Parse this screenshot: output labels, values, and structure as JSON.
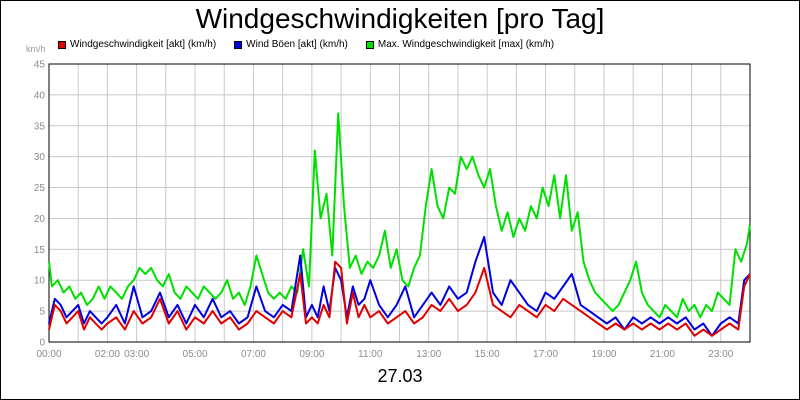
{
  "chart_data": {
    "type": "line",
    "title": "Windgeschwindigkeiten [pro Tag]",
    "ylabel": "km/h",
    "date": "27.03",
    "ylim": [
      0,
      45
    ],
    "y_ticks": [
      "0",
      "5",
      "10",
      "15",
      "20",
      "25",
      "30",
      "35",
      "40",
      "45"
    ],
    "x_ticks": [
      "00:00",
      "02:00",
      "03:00",
      "05:00",
      "07:00",
      "09:00",
      "11:00",
      "13:00",
      "15:00",
      "17:00",
      "19:00",
      "21:00",
      "23:00"
    ],
    "x_tick_hours": [
      0,
      2,
      3,
      5,
      7,
      9,
      11,
      13,
      15,
      17,
      19,
      21,
      23
    ],
    "xlim": [
      0,
      24
    ],
    "grid": true,
    "legend_position": "top",
    "series": [
      {
        "name": "Windgeschwindigkeit [akt] (km/h)",
        "color": "#e00000",
        "points": [
          [
            0,
            2
          ],
          [
            0.2,
            6
          ],
          [
            0.4,
            5
          ],
          [
            0.6,
            3
          ],
          [
            0.8,
            4
          ],
          [
            1,
            5
          ],
          [
            1.2,
            2
          ],
          [
            1.4,
            4
          ],
          [
            1.6,
            3
          ],
          [
            1.8,
            2
          ],
          [
            2,
            3
          ],
          [
            2.3,
            4
          ],
          [
            2.6,
            2
          ],
          [
            2.9,
            5
          ],
          [
            3.2,
            3
          ],
          [
            3.5,
            4
          ],
          [
            3.8,
            7
          ],
          [
            4.1,
            3
          ],
          [
            4.4,
            5
          ],
          [
            4.7,
            2
          ],
          [
            5,
            4
          ],
          [
            5.3,
            3
          ],
          [
            5.6,
            5
          ],
          [
            5.9,
            3
          ],
          [
            6.2,
            4
          ],
          [
            6.5,
            2
          ],
          [
            6.8,
            3
          ],
          [
            7.1,
            5
          ],
          [
            7.4,
            4
          ],
          [
            7.7,
            3
          ],
          [
            8,
            5
          ],
          [
            8.3,
            4
          ],
          [
            8.6,
            11
          ],
          [
            8.8,
            3
          ],
          [
            9,
            4
          ],
          [
            9.2,
            3
          ],
          [
            9.4,
            6
          ],
          [
            9.6,
            4
          ],
          [
            9.8,
            13
          ],
          [
            10,
            12
          ],
          [
            10.2,
            3
          ],
          [
            10.4,
            8
          ],
          [
            10.6,
            4
          ],
          [
            10.8,
            6
          ],
          [
            11,
            4
          ],
          [
            11.3,
            5
          ],
          [
            11.6,
            3
          ],
          [
            11.9,
            4
          ],
          [
            12.2,
            5
          ],
          [
            12.5,
            3
          ],
          [
            12.8,
            4
          ],
          [
            13.1,
            6
          ],
          [
            13.4,
            5
          ],
          [
            13.7,
            7
          ],
          [
            14,
            5
          ],
          [
            14.3,
            6
          ],
          [
            14.6,
            8
          ],
          [
            14.9,
            12
          ],
          [
            15.2,
            6
          ],
          [
            15.5,
            5
          ],
          [
            15.8,
            4
          ],
          [
            16.1,
            6
          ],
          [
            16.4,
            5
          ],
          [
            16.7,
            4
          ],
          [
            17,
            6
          ],
          [
            17.3,
            5
          ],
          [
            17.6,
            7
          ],
          [
            17.9,
            6
          ],
          [
            18.2,
            5
          ],
          [
            18.5,
            4
          ],
          [
            18.8,
            3
          ],
          [
            19.1,
            2
          ],
          [
            19.4,
            3
          ],
          [
            19.7,
            2
          ],
          [
            20,
            3
          ],
          [
            20.3,
            2
          ],
          [
            20.6,
            3
          ],
          [
            20.9,
            2
          ],
          [
            21.2,
            3
          ],
          [
            21.5,
            2
          ],
          [
            21.8,
            3
          ],
          [
            22.1,
            1
          ],
          [
            22.4,
            2
          ],
          [
            22.7,
            1
          ],
          [
            23,
            2
          ],
          [
            23.3,
            3
          ],
          [
            23.6,
            2
          ],
          [
            23.8,
            9
          ],
          [
            24,
            11
          ]
        ]
      },
      {
        "name": "Wind Böen [akt] (km/h)",
        "color": "#0000e0",
        "points": [
          [
            0,
            3
          ],
          [
            0.2,
            7
          ],
          [
            0.4,
            6
          ],
          [
            0.6,
            4
          ],
          [
            0.8,
            5
          ],
          [
            1,
            6
          ],
          [
            1.2,
            3
          ],
          [
            1.4,
            5
          ],
          [
            1.6,
            4
          ],
          [
            1.8,
            3
          ],
          [
            2,
            4
          ],
          [
            2.3,
            6
          ],
          [
            2.6,
            3
          ],
          [
            2.9,
            9
          ],
          [
            3.2,
            4
          ],
          [
            3.5,
            5
          ],
          [
            3.8,
            8
          ],
          [
            4.1,
            4
          ],
          [
            4.4,
            6
          ],
          [
            4.7,
            3
          ],
          [
            5,
            6
          ],
          [
            5.3,
            4
          ],
          [
            5.6,
            7
          ],
          [
            5.9,
            4
          ],
          [
            6.2,
            5
          ],
          [
            6.5,
            3
          ],
          [
            6.8,
            4
          ],
          [
            7.1,
            9
          ],
          [
            7.4,
            5
          ],
          [
            7.7,
            4
          ],
          [
            8,
            6
          ],
          [
            8.3,
            5
          ],
          [
            8.6,
            14
          ],
          [
            8.8,
            4
          ],
          [
            9,
            6
          ],
          [
            9.2,
            4
          ],
          [
            9.4,
            9
          ],
          [
            9.6,
            5
          ],
          [
            9.8,
            12
          ],
          [
            10,
            10
          ],
          [
            10.2,
            4
          ],
          [
            10.4,
            9
          ],
          [
            10.6,
            6
          ],
          [
            10.8,
            7
          ],
          [
            11,
            10
          ],
          [
            11.3,
            6
          ],
          [
            11.6,
            4
          ],
          [
            11.9,
            6
          ],
          [
            12.2,
            9
          ],
          [
            12.5,
            4
          ],
          [
            12.8,
            6
          ],
          [
            13.1,
            8
          ],
          [
            13.4,
            6
          ],
          [
            13.7,
            9
          ],
          [
            14,
            7
          ],
          [
            14.3,
            8
          ],
          [
            14.6,
            13
          ],
          [
            14.9,
            17
          ],
          [
            15.2,
            8
          ],
          [
            15.5,
            6
          ],
          [
            15.8,
            10
          ],
          [
            16.1,
            8
          ],
          [
            16.4,
            6
          ],
          [
            16.7,
            5
          ],
          [
            17,
            8
          ],
          [
            17.3,
            7
          ],
          [
            17.6,
            9
          ],
          [
            17.9,
            11
          ],
          [
            18.2,
            6
          ],
          [
            18.5,
            5
          ],
          [
            18.8,
            4
          ],
          [
            19.1,
            3
          ],
          [
            19.4,
            4
          ],
          [
            19.7,
            2
          ],
          [
            20,
            4
          ],
          [
            20.3,
            3
          ],
          [
            20.6,
            4
          ],
          [
            20.9,
            3
          ],
          [
            21.2,
            4
          ],
          [
            21.5,
            3
          ],
          [
            21.8,
            4
          ],
          [
            22.1,
            2
          ],
          [
            22.4,
            3
          ],
          [
            22.7,
            1
          ],
          [
            23,
            3
          ],
          [
            23.3,
            4
          ],
          [
            23.6,
            3
          ],
          [
            23.8,
            10
          ],
          [
            24,
            11
          ]
        ]
      },
      {
        "name": "Max. Windgeschwindigkeit [max] (km/h)",
        "color": "#00e000",
        "points": [
          [
            0,
            13
          ],
          [
            0.1,
            9
          ],
          [
            0.3,
            10
          ],
          [
            0.5,
            8
          ],
          [
            0.7,
            9
          ],
          [
            0.9,
            7
          ],
          [
            1.1,
            8
          ],
          [
            1.3,
            6
          ],
          [
            1.5,
            7
          ],
          [
            1.7,
            9
          ],
          [
            1.9,
            7
          ],
          [
            2.1,
            9
          ],
          [
            2.3,
            8
          ],
          [
            2.5,
            7
          ],
          [
            2.7,
            9
          ],
          [
            2.9,
            10
          ],
          [
            3.1,
            12
          ],
          [
            3.3,
            11
          ],
          [
            3.5,
            12
          ],
          [
            3.7,
            10
          ],
          [
            3.9,
            9
          ],
          [
            4.1,
            11
          ],
          [
            4.3,
            8
          ],
          [
            4.5,
            7
          ],
          [
            4.7,
            9
          ],
          [
            4.9,
            8
          ],
          [
            5.1,
            7
          ],
          [
            5.3,
            9
          ],
          [
            5.5,
            8
          ],
          [
            5.7,
            7
          ],
          [
            5.9,
            8
          ],
          [
            6.1,
            10
          ],
          [
            6.3,
            7
          ],
          [
            6.5,
            8
          ],
          [
            6.7,
            6
          ],
          [
            6.9,
            9
          ],
          [
            7.1,
            14
          ],
          [
            7.3,
            11
          ],
          [
            7.5,
            8
          ],
          [
            7.7,
            7
          ],
          [
            7.9,
            8
          ],
          [
            8.1,
            7
          ],
          [
            8.3,
            9
          ],
          [
            8.5,
            8
          ],
          [
            8.7,
            15
          ],
          [
            8.9,
            9
          ],
          [
            9.1,
            31
          ],
          [
            9.3,
            20
          ],
          [
            9.5,
            24
          ],
          [
            9.7,
            14
          ],
          [
            9.9,
            37
          ],
          [
            10.1,
            22
          ],
          [
            10.3,
            12
          ],
          [
            10.5,
            14
          ],
          [
            10.7,
            11
          ],
          [
            10.9,
            13
          ],
          [
            11.1,
            12
          ],
          [
            11.3,
            14
          ],
          [
            11.5,
            18
          ],
          [
            11.7,
            12
          ],
          [
            11.9,
            15
          ],
          [
            12.1,
            10
          ],
          [
            12.3,
            9
          ],
          [
            12.5,
            12
          ],
          [
            12.7,
            14
          ],
          [
            12.9,
            22
          ],
          [
            13.1,
            28
          ],
          [
            13.3,
            22
          ],
          [
            13.5,
            20
          ],
          [
            13.7,
            25
          ],
          [
            13.9,
            24
          ],
          [
            14.1,
            30
          ],
          [
            14.3,
            28
          ],
          [
            14.5,
            30
          ],
          [
            14.7,
            27
          ],
          [
            14.9,
            25
          ],
          [
            15.1,
            28
          ],
          [
            15.3,
            22
          ],
          [
            15.5,
            18
          ],
          [
            15.7,
            21
          ],
          [
            15.9,
            17
          ],
          [
            16.1,
            20
          ],
          [
            16.3,
            18
          ],
          [
            16.5,
            22
          ],
          [
            16.7,
            20
          ],
          [
            16.9,
            25
          ],
          [
            17.1,
            22
          ],
          [
            17.3,
            27
          ],
          [
            17.5,
            20
          ],
          [
            17.7,
            27
          ],
          [
            17.9,
            18
          ],
          [
            18.1,
            21
          ],
          [
            18.3,
            13
          ],
          [
            18.5,
            10
          ],
          [
            18.7,
            8
          ],
          [
            18.9,
            7
          ],
          [
            19.1,
            6
          ],
          [
            19.3,
            5
          ],
          [
            19.5,
            6
          ],
          [
            19.7,
            8
          ],
          [
            19.9,
            10
          ],
          [
            20.1,
            13
          ],
          [
            20.3,
            8
          ],
          [
            20.5,
            6
          ],
          [
            20.7,
            5
          ],
          [
            20.9,
            4
          ],
          [
            21.1,
            6
          ],
          [
            21.3,
            5
          ],
          [
            21.5,
            4
          ],
          [
            21.7,
            7
          ],
          [
            21.9,
            5
          ],
          [
            22.1,
            6
          ],
          [
            22.3,
            4
          ],
          [
            22.5,
            6
          ],
          [
            22.7,
            5
          ],
          [
            22.9,
            8
          ],
          [
            23.1,
            7
          ],
          [
            23.3,
            6
          ],
          [
            23.5,
            15
          ],
          [
            23.7,
            13
          ],
          [
            23.9,
            16
          ],
          [
            24,
            19
          ]
        ]
      }
    ]
  }
}
